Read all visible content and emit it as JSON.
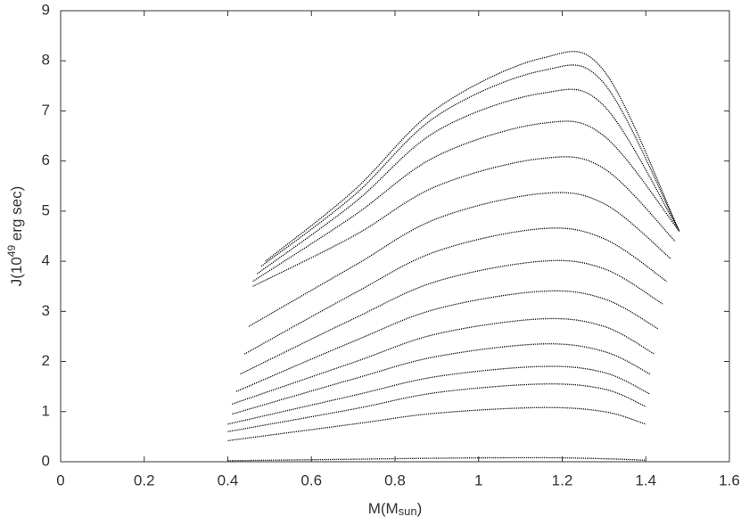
{
  "chart_data": {
    "type": "line",
    "x_label": [
      "M(M",
      "sun",
      ")"
    ],
    "y_label": [
      "J(10",
      "49",
      " erg sec)"
    ],
    "xlim": [
      0,
      1.6
    ],
    "xticks": [
      0,
      0.2,
      0.4,
      0.6,
      0.8,
      1,
      1.2,
      1.4,
      1.6
    ],
    "ylim": [
      0,
      9
    ],
    "yticks": [
      0,
      1,
      2,
      3,
      4,
      5,
      6,
      7,
      8,
      9
    ],
    "color": "#111111",
    "series": [
      {
        "x": [
          0.4,
          0.7,
          0.9,
          1.15,
          1.3,
          1.4
        ],
        "values": [
          0.02,
          0.05,
          0.07,
          0.08,
          0.06,
          0.03
        ]
      },
      {
        "x": [
          0.4,
          0.7,
          0.9,
          1.15,
          1.3,
          1.4
        ],
        "values": [
          0.42,
          0.75,
          0.97,
          1.08,
          1.0,
          0.75
        ]
      },
      {
        "x": [
          0.4,
          0.7,
          0.9,
          1.15,
          1.3,
          1.4
        ],
        "values": [
          0.6,
          1.05,
          1.38,
          1.55,
          1.45,
          1.1
        ]
      },
      {
        "x": [
          0.4,
          0.7,
          0.9,
          1.15,
          1.3,
          1.41
        ],
        "values": [
          0.75,
          1.32,
          1.7,
          1.9,
          1.78,
          1.35
        ]
      },
      {
        "x": [
          0.41,
          0.7,
          0.9,
          1.15,
          1.3,
          1.41
        ],
        "values": [
          0.95,
          1.65,
          2.1,
          2.35,
          2.2,
          1.75
        ]
      },
      {
        "x": [
          0.41,
          0.7,
          0.9,
          1.15,
          1.3,
          1.42
        ],
        "values": [
          1.15,
          1.98,
          2.55,
          2.85,
          2.7,
          2.15
        ]
      },
      {
        "x": [
          0.42,
          0.7,
          0.9,
          1.15,
          1.3,
          1.43
        ],
        "values": [
          1.4,
          2.4,
          3.05,
          3.4,
          3.25,
          2.65
        ]
      },
      {
        "x": [
          0.43,
          0.7,
          0.9,
          1.15,
          1.3,
          1.44
        ],
        "values": [
          1.75,
          2.85,
          3.6,
          4.0,
          3.85,
          3.15
        ]
      },
      {
        "x": [
          0.44,
          0.7,
          0.9,
          1.15,
          1.3,
          1.45
        ],
        "values": [
          2.15,
          3.35,
          4.2,
          4.65,
          4.45,
          3.6
        ]
      },
      {
        "x": [
          0.45,
          0.7,
          0.9,
          1.15,
          1.3,
          1.46
        ],
        "values": [
          2.7,
          3.9,
          4.85,
          5.35,
          5.15,
          4.05
        ]
      },
      {
        "x": [
          0.46,
          0.7,
          0.9,
          1.15,
          1.3,
          1.47
        ],
        "values": [
          3.5,
          4.5,
          5.5,
          6.05,
          5.85,
          4.4
        ]
      },
      {
        "x": [
          0.46,
          0.7,
          0.9,
          1.15,
          1.3,
          1.48
        ],
        "values": [
          3.6,
          4.9,
          6.1,
          6.75,
          6.5,
          4.6
        ]
      },
      {
        "x": [
          0.47,
          0.7,
          0.9,
          1.15,
          1.3,
          1.48
        ],
        "values": [
          3.75,
          5.15,
          6.6,
          7.35,
          7.1,
          4.6
        ]
      },
      {
        "x": [
          0.48,
          0.7,
          0.9,
          1.15,
          1.3,
          1.48
        ],
        "values": [
          3.9,
          5.3,
          6.9,
          7.8,
          7.55,
          4.6
        ]
      },
      {
        "x": [
          0.49,
          0.7,
          0.9,
          1.15,
          1.3,
          1.48
        ],
        "values": [
          4.0,
          5.4,
          7.05,
          8.05,
          7.8,
          4.6
        ]
      }
    ]
  }
}
